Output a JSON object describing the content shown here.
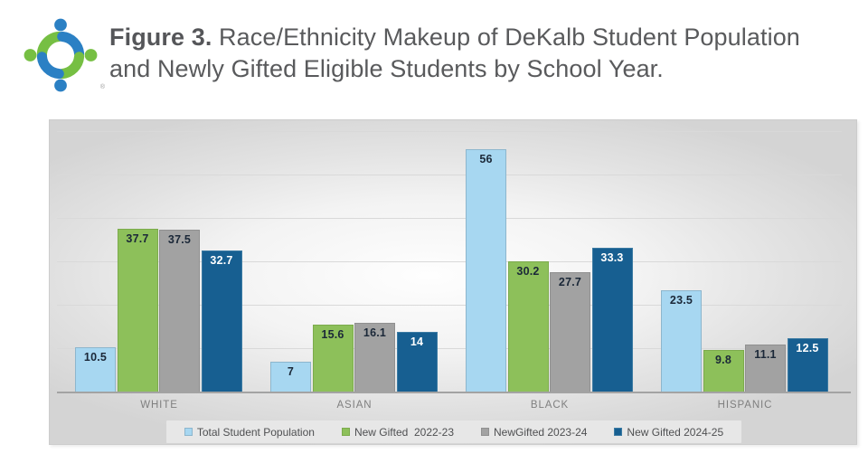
{
  "header": {
    "figure_label": "Figure 3.",
    "title_rest": " Race/Ethnicity Makeup of DeKalb Student Population and Newly Gifted Eligible Students by School Year.",
    "logo": {
      "name": "dekalb-schools-logo",
      "registered_mark": "®",
      "green": "#76bf43",
      "blue": "#2b80c4"
    }
  },
  "chart_data": {
    "type": "bar",
    "title": "Race/Ethnicity Makeup of DeKalb Student Population and Newly Gifted Eligible Students by School Year",
    "categories": [
      "WHITE",
      "ASIAN",
      "BLACK",
      "HISPANIC"
    ],
    "series": [
      {
        "name": "Total Student Population",
        "color": "#a7d7f1",
        "border_color": "#8db6cd",
        "label_color": "#1b2838",
        "values": [
          10.5,
          7,
          56,
          23.5
        ],
        "labels": [
          "10.5",
          "7",
          "56",
          "23.5"
        ]
      },
      {
        "name": "New Gifted  2022-23",
        "color": "#8dc05a",
        "border_color": "#7cab4c",
        "label_color": "#1b2838",
        "values": [
          37.7,
          15.6,
          30.2,
          9.8
        ],
        "labels": [
          "37.7",
          "15.6",
          "30.2",
          "9.8"
        ]
      },
      {
        "name": "NewGifted 2023-24",
        "color": "#a2a2a2",
        "border_color": "#909090",
        "label_color": "#1b2838",
        "values": [
          37.5,
          16.1,
          27.7,
          11.1
        ],
        "labels": [
          "37.5",
          "16.1",
          "27.7",
          "11.1"
        ]
      },
      {
        "name": "New Gifted 2024-25",
        "color": "#175f91",
        "border_color": "#3c7ba3",
        "label_color": "#ffffff",
        "values": [
          32.7,
          14,
          33.3,
          12.5
        ],
        "labels": [
          "32.7",
          "14",
          "33.3",
          "12.5"
        ]
      }
    ],
    "xlabel": "",
    "ylabel": "",
    "ylim": [
      0,
      62.5
    ],
    "gridline_step": 10,
    "gridline_max": 60,
    "grid": true,
    "y_axis_labels_visible": false,
    "legend_position": "bottom",
    "axis_color": "#a3a3a3",
    "gridline_color": "#d9d9d9"
  }
}
